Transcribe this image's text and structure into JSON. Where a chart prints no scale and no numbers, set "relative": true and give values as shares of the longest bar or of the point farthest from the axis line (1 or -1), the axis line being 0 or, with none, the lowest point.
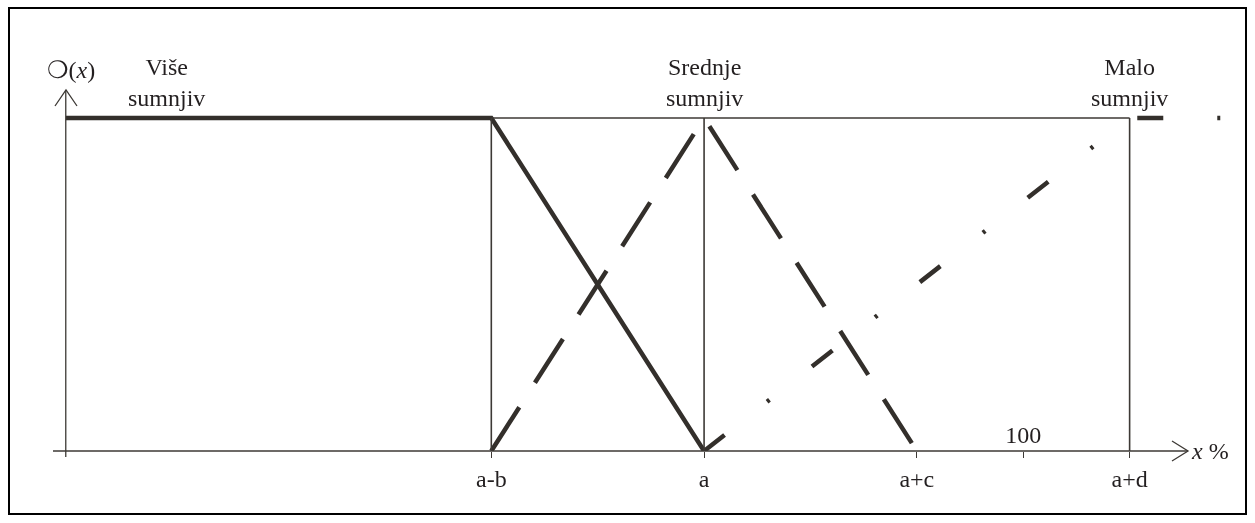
{
  "chart_data": {
    "type": "line",
    "relative": true,
    "categories": [
      null,
      null,
      null,
      null,
      "a-b",
      null,
      "a",
      null,
      "a+c",
      "100",
      "a+d",
      null
    ],
    "xlabel": "x %",
    "ylabel": "❍(x)",
    "series": [
      {
        "name": "Više sumnjiv",
        "color": "#332f2b",
        "line_style": "solid",
        "values": [
          1,
          1,
          1,
          1,
          1,
          0.5,
          0,
          null,
          null,
          null,
          null,
          null
        ]
      },
      {
        "name": "Srednje sumnjiv",
        "color": "#332f2b",
        "line_style": "dashed",
        "values": [
          null,
          null,
          null,
          null,
          0,
          0.5,
          1,
          0.5,
          0,
          null,
          null,
          null
        ]
      },
      {
        "name": "Malo sumnjiv",
        "color": "#332f2b",
        "line_style": "dashdot",
        "values": [
          null,
          null,
          null,
          null,
          null,
          null,
          0,
          0.25,
          0.5,
          0.75,
          1,
          1
        ]
      }
    ],
    "ref_lines": [
      {
        "axis": "y",
        "value": 1,
        "color": "#3d3935"
      }
    ],
    "legend": false,
    "grid": "x",
    "marker": "none"
  }
}
